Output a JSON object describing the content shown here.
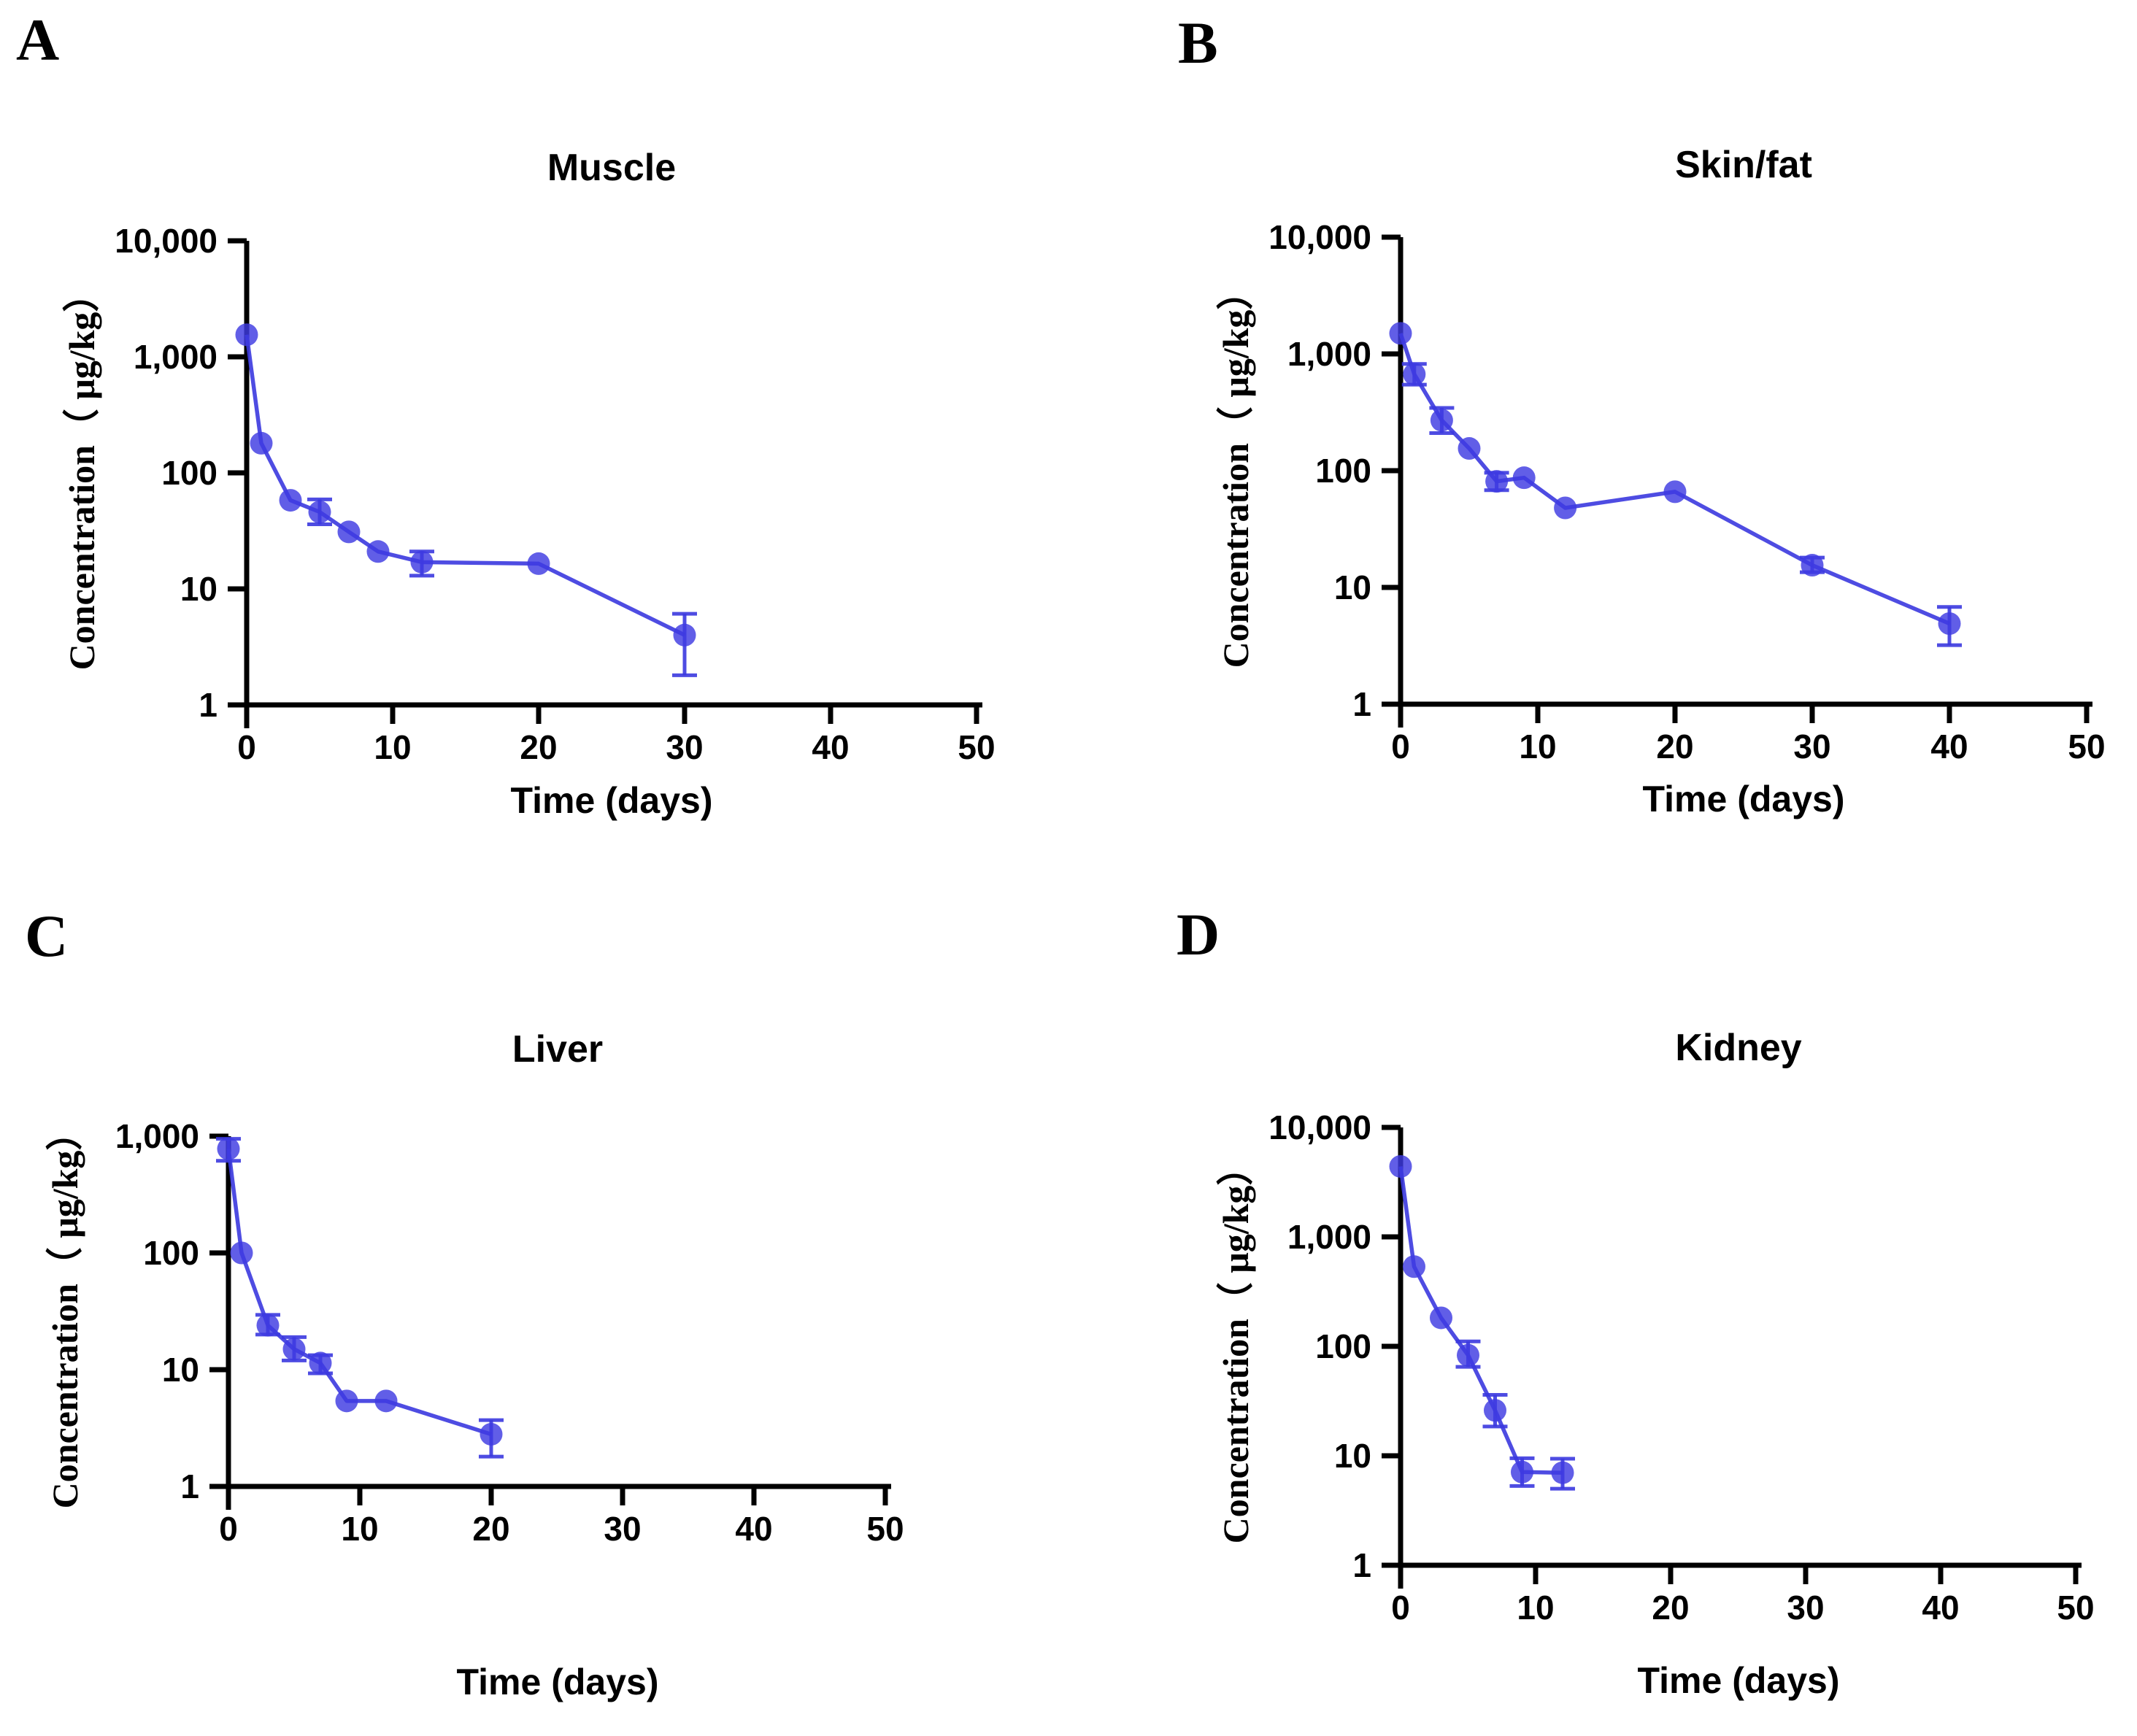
{
  "figure": {
    "background": "#ffffff",
    "axis_color": "#000000",
    "series_color": "#3B38DF",
    "marker_color": "#3E3BE2"
  },
  "chart_data": [
    {
      "panel_letter": "A",
      "title": "Muscle",
      "type": "line",
      "xlabel": "Time (days)",
      "ylabel": "Concentration（ μg/kg）",
      "legend": null,
      "grid": false,
      "x_ticks": [
        0,
        10,
        20,
        30,
        40,
        50
      ],
      "y_tick_labels": [
        "10,000",
        "1,000",
        "100",
        "10",
        "1"
      ],
      "xlim": [
        0,
        50
      ],
      "ylim": [
        1,
        10000
      ],
      "y_scale": "log10",
      "x": [
        0,
        1,
        3,
        5,
        7,
        9,
        12,
        20,
        30
      ],
      "y": [
        1550,
        180,
        58,
        46,
        31,
        21,
        17,
        16.5,
        4
      ],
      "err_lo": [
        null,
        null,
        null,
        36,
        null,
        null,
        13,
        null,
        1.8
      ],
      "err_hi": [
        null,
        null,
        null,
        59,
        null,
        null,
        21,
        null,
        6.1
      ]
    },
    {
      "panel_letter": "B",
      "title": "Skin/fat",
      "type": "line",
      "xlabel": "Time (days)",
      "ylabel": "Concentration（ μg/kg）",
      "legend": null,
      "grid": false,
      "x_ticks": [
        0,
        10,
        20,
        30,
        40,
        50
      ],
      "y_tick_labels": [
        "10,000",
        "1,000",
        "100",
        "10",
        "1"
      ],
      "xlim": [
        0,
        50
      ],
      "ylim": [
        1,
        10000
      ],
      "y_scale": "log10",
      "x": [
        0,
        1,
        3,
        5,
        7,
        9,
        12,
        20,
        30,
        40
      ],
      "y": [
        1500,
        670,
        270,
        155,
        81,
        87,
        48,
        66,
        15.5,
        4.9
      ],
      "err_lo": [
        null,
        545,
        210,
        null,
        68,
        null,
        null,
        null,
        13.5,
        3.2
      ],
      "err_hi": [
        null,
        820,
        345,
        null,
        96,
        null,
        null,
        null,
        18,
        6.8
      ]
    },
    {
      "panel_letter": "C",
      "title": "Liver",
      "type": "line",
      "xlabel": "Time (days)",
      "ylabel": "Concentration（ μg/kg）",
      "legend": null,
      "grid": false,
      "x_ticks": [
        0,
        10,
        20,
        30,
        40,
        50
      ],
      "y_tick_labels": [
        "1,000",
        "100",
        "10",
        "1"
      ],
      "xlim": [
        0,
        50
      ],
      "ylim": [
        1,
        1000
      ],
      "y_scale": "log10",
      "x": [
        0,
        1,
        3,
        5,
        7,
        9,
        12,
        20
      ],
      "y": [
        780,
        100,
        24,
        15,
        11.4,
        5.4,
        5.4,
        2.8
      ],
      "err_lo": [
        615,
        null,
        20,
        12,
        9.3,
        null,
        null,
        1.8
      ],
      "err_hi": [
        950,
        null,
        29.5,
        19,
        13.3,
        null,
        null,
        3.7
      ]
    },
    {
      "panel_letter": "D",
      "title": "Kidney",
      "type": "line",
      "xlabel": "Time (days)",
      "ylabel": "Concentration（ μg/kg）",
      "legend": null,
      "grid": false,
      "x_ticks": [
        0,
        10,
        20,
        30,
        40,
        50
      ],
      "y_tick_labels": [
        "10,000",
        "1,000",
        "100",
        "10",
        "1"
      ],
      "xlim": [
        0,
        50
      ],
      "ylim": [
        1,
        10000
      ],
      "y_scale": "log10",
      "x": [
        0,
        1,
        3,
        5,
        7,
        9,
        12
      ],
      "y": [
        4400,
        535,
        182,
        83,
        26,
        7.1,
        7
      ],
      "err_lo": [
        null,
        null,
        null,
        65,
        18.5,
        5.3,
        5
      ],
      "err_hi": [
        null,
        null,
        null,
        111,
        36,
        9.5,
        9.4
      ]
    }
  ]
}
